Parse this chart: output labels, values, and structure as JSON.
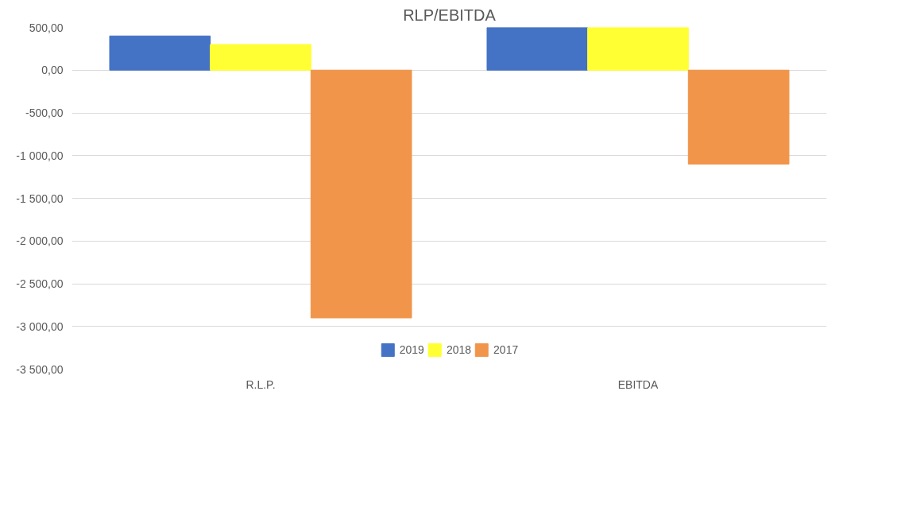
{
  "chart_data": {
    "type": "bar",
    "title": "RLP/EBITDA",
    "categories": [
      "R.L.P.",
      "EBITDA"
    ],
    "series": [
      {
        "name": "2019",
        "color": "#4472c4",
        "values": [
          400,
          500
        ]
      },
      {
        "name": "2018",
        "color": "#ffff33",
        "values": [
          300,
          500
        ]
      },
      {
        "name": "2017",
        "color": "#f0954a",
        "values": [
          -2900,
          -1100
        ]
      }
    ],
    "ylim": [
      -3500,
      500
    ],
    "yticks": [
      {
        "value": 500,
        "label": "500,00"
      },
      {
        "value": 0,
        "label": "0,00"
      },
      {
        "value": -500,
        "label": "-500,00"
      },
      {
        "value": -1000,
        "label": "-1 000,00"
      },
      {
        "value": -1500,
        "label": "-1 500,00"
      },
      {
        "value": -2000,
        "label": "-2 000,00"
      },
      {
        "value": -2500,
        "label": "-2 500,00"
      },
      {
        "value": -3000,
        "label": "-3 000,00"
      },
      {
        "value": -3500,
        "label": "-3 500,00"
      }
    ],
    "grid": "y",
    "legend": "bottom"
  }
}
